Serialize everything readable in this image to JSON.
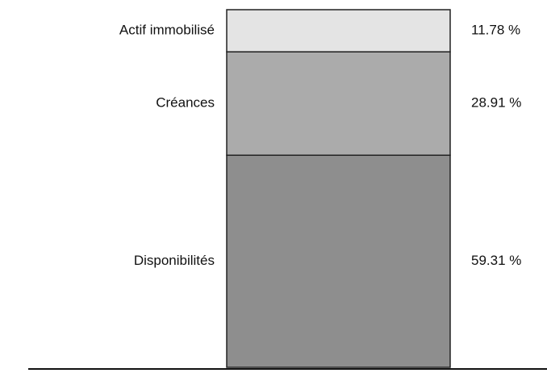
{
  "chart_data": {
    "type": "stacked_bar",
    "series": [
      {
        "name": "Disponibilités",
        "color": "#8e8e8e",
        "values": [
          59.31
        ],
        "value_labels": [
          "59.31 %"
        ]
      },
      {
        "name": "Créances",
        "color": "#ababab",
        "values": [
          28.91
        ],
        "value_labels": [
          "28.91 %"
        ]
      },
      {
        "name": "Actif immobilisé",
        "color": "#e4e4e4",
        "values": [
          11.78
        ],
        "value_labels": [
          "11.78 %"
        ]
      }
    ],
    "ylim": [
      0,
      100
    ]
  }
}
